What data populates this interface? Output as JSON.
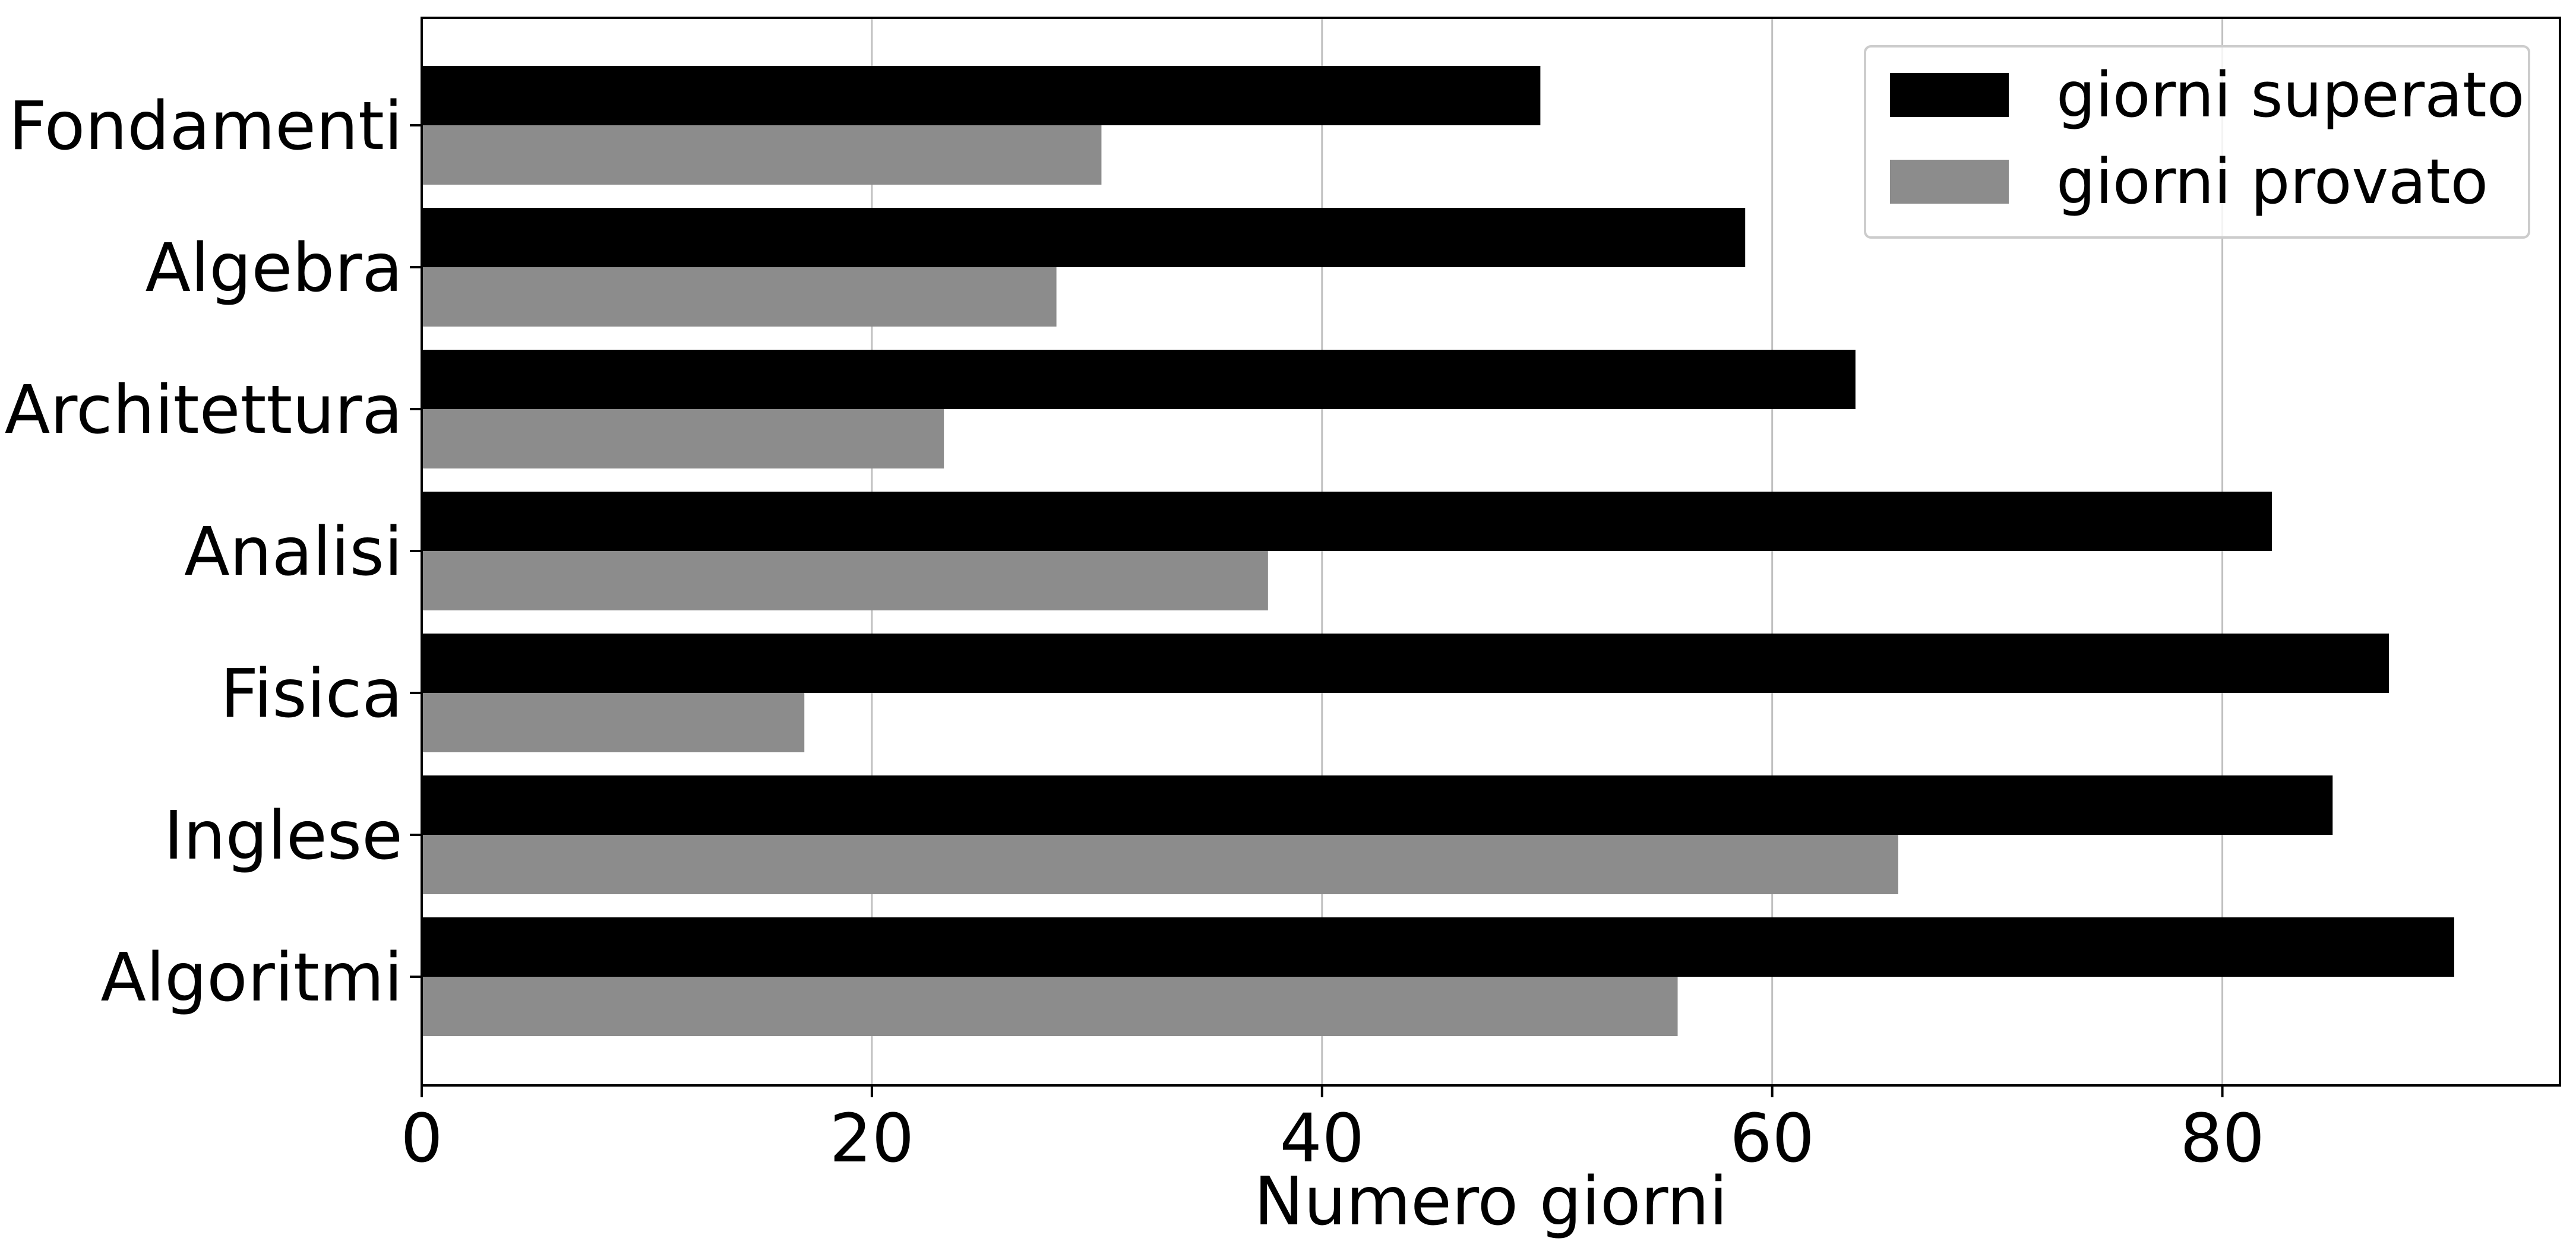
{
  "chart_data": {
    "type": "bar",
    "orientation": "horizontal",
    "title": "",
    "xlabel": "Numero giorni",
    "ylabel": "",
    "xlim": [
      0,
      95
    ],
    "x_ticks": [
      0,
      20,
      40,
      60,
      80
    ],
    "grid": "vertical",
    "legend_position": "top-right",
    "categories": [
      "Fondamenti",
      "Algebra",
      "Architettura",
      "Analisi",
      "Fisica",
      "Inglese",
      "Algoritmi"
    ],
    "series": [
      {
        "name": "giorni superato",
        "color": "#000000",
        "values": [
          49.7,
          58.8,
          63.7,
          82.2,
          87.4,
          84.9,
          90.3
        ]
      },
      {
        "name": "giorni provato",
        "color": "#8c8c8c",
        "values": [
          30.2,
          28.2,
          23.2,
          37.6,
          17.0,
          65.6,
          55.8
        ]
      }
    ]
  }
}
